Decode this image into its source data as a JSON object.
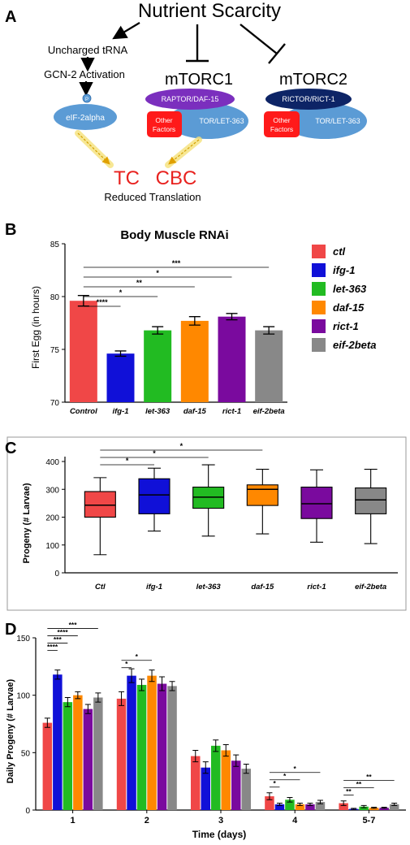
{
  "panelA": {
    "letter": "A",
    "title": "Nutrient Scarcity",
    "uncharged": "Uncharged tRNA",
    "gcn2": "GCN-2 Activation",
    "p": "P",
    "eif2alpha": "eIF-2alpha",
    "mtorc1": "mTORC1",
    "mtorc2": "mTORC2",
    "raptor": "RAPTOR/DAF-15",
    "rictor": "RICTOR/RICT-1",
    "tor": "TOR/LET-363",
    "other_line1": "Other",
    "other_line2": "Factors",
    "tc": "TC",
    "cbc": "CBC",
    "reduced": "Reduced Translation",
    "colors": {
      "red_text": "#e8221f",
      "purple": "#7b2fbe",
      "navy": "#0d2466",
      "blue": "#5b9bd5",
      "red_box": "#ff1a1a",
      "arrow_yellow": "#f2d64b"
    }
  },
  "chart_data": [
    {
      "id": "B",
      "letter": "B",
      "type": "bar",
      "title": "Body Muscle RNAi",
      "ylabel": "First Egg (in hours)",
      "ylim": [
        70,
        85
      ],
      "yticks": [
        "70",
        "75",
        "80",
        "85"
      ],
      "categories": [
        "Control",
        "ifg-1",
        "let-363",
        "daf-15",
        "rict-1",
        "eif-2beta"
      ],
      "values": [
        79.6,
        74.6,
        76.8,
        77.7,
        78.1,
        76.8
      ],
      "errors": [
        0.5,
        0.25,
        0.35,
        0.4,
        0.3,
        0.35
      ],
      "colors": [
        "#f04747",
        "#1010d8",
        "#22bb22",
        "#ff8800",
        "#7a0a9e",
        "#888888"
      ],
      "legend": [
        "ctl",
        "ifg-1",
        "let-363",
        "daf-15",
        "rict-1",
        "eif-2beta"
      ],
      "legend_position": "right",
      "significance": [
        {
          "label": "****",
          "from": 0,
          "to": 1
        },
        {
          "label": "*",
          "from": 0,
          "to": 2
        },
        {
          "label": "**",
          "from": 0,
          "to": 3
        },
        {
          "label": "*",
          "from": 0,
          "to": 4
        },
        {
          "label": "***",
          "from": 0,
          "to": 5
        }
      ]
    },
    {
      "id": "C",
      "letter": "C",
      "type": "box",
      "ylabel": "Progeny (# Larvae)",
      "ylim": [
        0,
        400
      ],
      "yticks": [
        "0",
        "100",
        "200",
        "300",
        "400"
      ],
      "categories": [
        "Ctl",
        "ifg-1",
        "let-363",
        "daf-15",
        "rict-1",
        "eif-2beta"
      ],
      "boxes": [
        {
          "min": 65,
          "q1": 200,
          "median": 243,
          "q3": 292,
          "max": 342
        },
        {
          "min": 150,
          "q1": 212,
          "median": 280,
          "q3": 338,
          "max": 376
        },
        {
          "min": 132,
          "q1": 232,
          "median": 272,
          "q3": 308,
          "max": 388
        },
        {
          "min": 140,
          "q1": 242,
          "median": 300,
          "q3": 316,
          "max": 372
        },
        {
          "min": 110,
          "q1": 195,
          "median": 248,
          "q3": 308,
          "max": 370
        },
        {
          "min": 105,
          "q1": 212,
          "median": 262,
          "q3": 305,
          "max": 372
        }
      ],
      "colors": [
        "#f04747",
        "#1010d8",
        "#22bb22",
        "#ff8800",
        "#7a0a9e",
        "#888888"
      ],
      "significance": [
        {
          "label": "*",
          "from": 0,
          "to": 1
        },
        {
          "label": "*",
          "from": 0,
          "to": 2
        },
        {
          "label": "*",
          "from": 0,
          "to": 3
        }
      ]
    },
    {
      "id": "D",
      "letter": "D",
      "type": "bar",
      "ylabel": "Daily Progeny (# Larvae)",
      "xlabel": "Time (days)",
      "ylim": [
        0,
        150
      ],
      "yticks": [
        "0",
        "50",
        "100",
        "150"
      ],
      "categories": [
        "1",
        "2",
        "3",
        "4",
        "5-7"
      ],
      "series": [
        {
          "values": [
            76,
            97,
            47,
            12,
            6
          ],
          "errors": [
            4,
            6,
            5,
            3,
            2
          ],
          "color": "#f04747"
        },
        {
          "values": [
            118,
            117,
            37,
            5,
            1
          ],
          "errors": [
            4,
            6,
            5,
            1,
            0.5
          ],
          "color": "#1010d8"
        },
        {
          "values": [
            94,
            109,
            56,
            9,
            3
          ],
          "errors": [
            4,
            5,
            5,
            2,
            1
          ],
          "color": "#22bb22"
        },
        {
          "values": [
            100,
            117,
            52,
            5,
            2
          ],
          "errors": [
            3,
            5,
            5,
            1,
            0.5
          ],
          "color": "#ff8800"
        },
        {
          "values": [
            88,
            110,
            43,
            5,
            2
          ],
          "errors": [
            4,
            6,
            5,
            1,
            0.5
          ],
          "color": "#7a0a9e"
        },
        {
          "values": [
            98,
            108,
            36,
            7,
            5
          ],
          "errors": [
            4,
            4,
            4,
            1.5,
            1
          ],
          "color": "#888888"
        }
      ],
      "significance": [
        {
          "cat": 0,
          "label": "****",
          "to": 1
        },
        {
          "cat": 0,
          "label": "***",
          "to": 2
        },
        {
          "cat": 0,
          "label": "****",
          "to": 3
        },
        {
          "cat": 0,
          "label": "***",
          "to": 5
        },
        {
          "cat": 1,
          "label": "*",
          "to": 1
        },
        {
          "cat": 1,
          "label": "*",
          "to": 3
        },
        {
          "cat": 3,
          "label": "*",
          "to": 1
        },
        {
          "cat": 3,
          "label": "*",
          "to": 3
        },
        {
          "cat": 3,
          "label": "*",
          "to": 5
        },
        {
          "cat": 4,
          "label": "**",
          "to": 1
        },
        {
          "cat": 4,
          "label": "**",
          "to": 3
        },
        {
          "cat": 4,
          "label": "**",
          "to": 5
        }
      ]
    }
  ]
}
